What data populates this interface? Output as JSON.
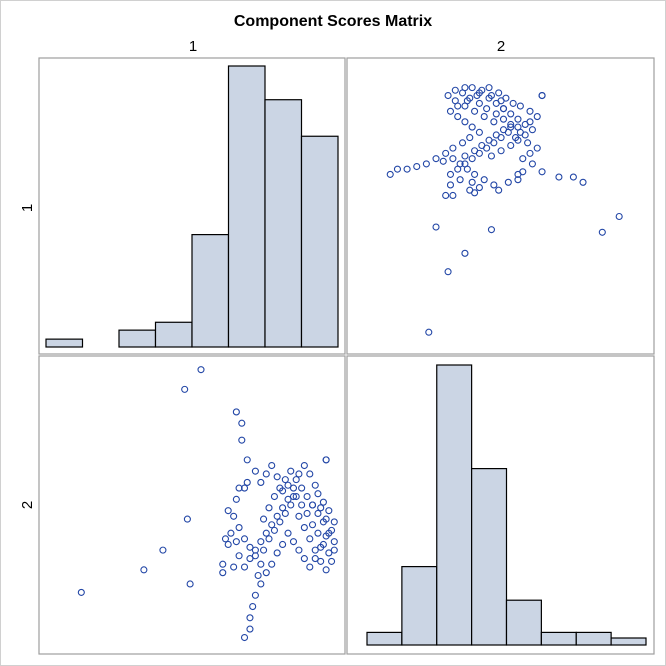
{
  "chart_data": {
    "type": "scatter-matrix",
    "title": "Component Scores Matrix",
    "variables": [
      "1",
      "2"
    ],
    "histograms": [
      {
        "variable": "1",
        "bin_edges": [
          0,
          1,
          2,
          3,
          4,
          5,
          6,
          7,
          8
        ],
        "heights": [
          2.8,
          0,
          6,
          8.8,
          40,
          100,
          88,
          75
        ],
        "ylim": [
          0,
          100
        ]
      },
      {
        "variable": "2",
        "bin_edges": [
          0,
          1,
          2,
          3,
          4,
          5,
          6,
          7,
          8
        ],
        "heights": [
          4.5,
          28,
          100,
          63,
          16,
          4.5,
          4.5,
          2.5
        ],
        "ylim": [
          0,
          100
        ]
      }
    ],
    "scatter": {
      "description": "Component 1 (x) vs Component 2 (y)",
      "xlim": [
        0,
        1
      ],
      "ylim": [
        0,
        1
      ],
      "points": [
        [
          0.06,
          0.19
        ],
        [
          0.29,
          0.27
        ],
        [
          0.36,
          0.34
        ],
        [
          0.45,
          0.45
        ],
        [
          0.46,
          0.22
        ],
        [
          0.44,
          0.91
        ],
        [
          0.5,
          0.98
        ],
        [
          0.63,
          0.83
        ],
        [
          0.65,
          0.79
        ],
        [
          0.67,
          0.66
        ],
        [
          0.66,
          0.56
        ],
        [
          0.63,
          0.52
        ],
        [
          0.6,
          0.48
        ],
        [
          0.6,
          0.36
        ],
        [
          0.58,
          0.26
        ],
        [
          0.58,
          0.29
        ],
        [
          0.59,
          0.38
        ],
        [
          0.61,
          0.4
        ],
        [
          0.64,
          0.42
        ],
        [
          0.66,
          0.38
        ],
        [
          0.68,
          0.35
        ],
        [
          0.7,
          0.32
        ],
        [
          0.72,
          0.29
        ],
        [
          0.73,
          0.34
        ],
        [
          0.75,
          0.38
        ],
        [
          0.77,
          0.41
        ],
        [
          0.79,
          0.44
        ],
        [
          0.81,
          0.47
        ],
        [
          0.83,
          0.5
        ],
        [
          0.85,
          0.53
        ],
        [
          0.87,
          0.56
        ],
        [
          0.89,
          0.53
        ],
        [
          0.91,
          0.5
        ],
        [
          0.93,
          0.54
        ],
        [
          0.95,
          0.51
        ],
        [
          0.97,
          0.48
        ],
        [
          0.99,
          0.44
        ],
        [
          0.96,
          0.39
        ],
        [
          0.94,
          0.35
        ],
        [
          0.92,
          0.31
        ],
        [
          0.9,
          0.28
        ],
        [
          0.88,
          0.31
        ],
        [
          0.86,
          0.34
        ],
        [
          0.84,
          0.37
        ],
        [
          0.82,
          0.4
        ],
        [
          0.8,
          0.36
        ],
        [
          0.78,
          0.33
        ],
        [
          0.76,
          0.29
        ],
        [
          0.74,
          0.26
        ],
        [
          0.72,
          0.22
        ],
        [
          0.7,
          0.18
        ],
        [
          0.69,
          0.14
        ],
        [
          0.68,
          0.1
        ],
        [
          0.68,
          0.06
        ],
        [
          0.66,
          0.03
        ],
        [
          0.71,
          0.25
        ],
        [
          0.73,
          0.45
        ],
        [
          0.75,
          0.49
        ],
        [
          0.77,
          0.53
        ],
        [
          0.79,
          0.56
        ],
        [
          0.81,
          0.59
        ],
        [
          0.83,
          0.62
        ],
        [
          0.85,
          0.59
        ],
        [
          0.87,
          0.5
        ],
        [
          0.89,
          0.47
        ],
        [
          0.91,
          0.43
        ],
        [
          0.93,
          0.4
        ],
        [
          0.95,
          0.36
        ],
        [
          0.97,
          0.33
        ],
        [
          0.99,
          0.37
        ],
        [
          0.98,
          0.41
        ],
        [
          0.96,
          0.45
        ],
        [
          0.94,
          0.49
        ],
        [
          0.92,
          0.57
        ],
        [
          0.9,
          0.61
        ],
        [
          0.88,
          0.64
        ],
        [
          0.86,
          0.61
        ],
        [
          0.84,
          0.56
        ],
        [
          0.82,
          0.52
        ],
        [
          0.8,
          0.49
        ],
        [
          0.78,
          0.46
        ],
        [
          0.76,
          0.43
        ],
        [
          0.74,
          0.4
        ],
        [
          0.72,
          0.37
        ],
        [
          0.7,
          0.34
        ],
        [
          0.68,
          0.31
        ],
        [
          0.66,
          0.28
        ],
        [
          0.64,
          0.32
        ],
        [
          0.62,
          0.28
        ],
        [
          0.62,
          0.46
        ],
        [
          0.64,
          0.56
        ],
        [
          0.67,
          0.58
        ],
        [
          0.7,
          0.62
        ],
        [
          0.72,
          0.58
        ],
        [
          0.74,
          0.61
        ],
        [
          0.76,
          0.64
        ],
        [
          0.78,
          0.6
        ],
        [
          0.8,
          0.55
        ],
        [
          0.82,
          0.57
        ],
        [
          0.84,
          0.53
        ],
        [
          0.86,
          0.46
        ],
        [
          0.88,
          0.42
        ],
        [
          0.9,
          0.38
        ],
        [
          0.92,
          0.34
        ],
        [
          0.94,
          0.3
        ],
        [
          0.96,
          0.27
        ],
        [
          0.98,
          0.3
        ],
        [
          0.99,
          0.34
        ],
        [
          0.97,
          0.4
        ],
        [
          0.95,
          0.44
        ],
        [
          0.93,
          0.47
        ],
        [
          0.91,
          0.5
        ],
        [
          0.96,
          0.66
        ],
        [
          0.96,
          0.66
        ],
        [
          0.65,
          0.73
        ],
        [
          0.63,
          0.37
        ]
      ]
    }
  }
}
